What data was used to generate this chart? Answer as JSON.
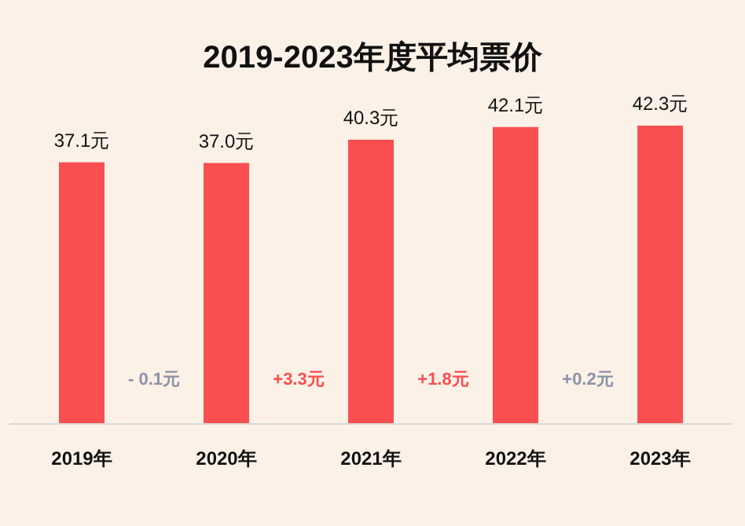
{
  "chart_data": {
    "type": "bar",
    "title": "2019-2023年度平均票价",
    "categories": [
      "2019年",
      "2020年",
      "2021年",
      "2022年",
      "2023年"
    ],
    "values": [
      37.1,
      37.0,
      40.3,
      42.1,
      42.3
    ],
    "color": "#f94f50",
    "value_labels": [
      "37.1元",
      "37.0元",
      "40.3元",
      "42.1元",
      "42.3元"
    ],
    "annotations": [
      "- 0.1元",
      "+3.3元",
      "+1.8元",
      "+0.2元"
    ]
  }
}
